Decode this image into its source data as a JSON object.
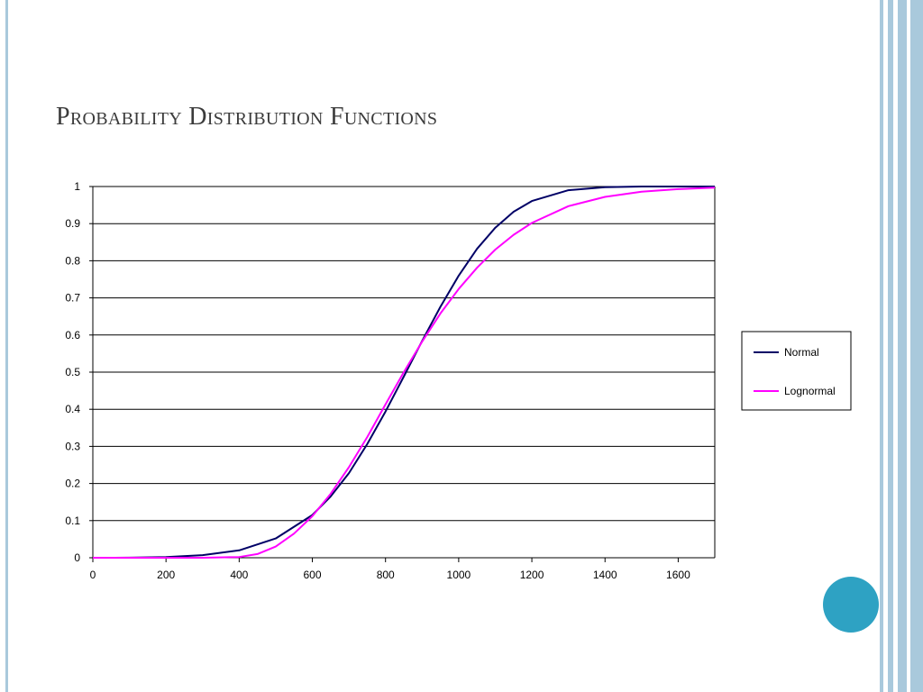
{
  "slide": {
    "title": "Probability Distribution Functions",
    "accent_stripe_color": "#a9c9dc",
    "circle_color": "#2ea2c3"
  },
  "chart_data": {
    "type": "line",
    "title": "",
    "xlabel": "",
    "ylabel": "",
    "xlim": [
      0,
      1700
    ],
    "ylim": [
      0,
      1
    ],
    "x_ticks": [
      0,
      200,
      400,
      600,
      800,
      1000,
      1200,
      1400,
      1600
    ],
    "y_ticks": [
      0,
      0.1,
      0.2,
      0.3,
      0.4,
      0.5,
      0.6,
      0.7,
      0.8,
      0.9,
      1
    ],
    "y_tick_labels": [
      "0",
      "0.1",
      "0.2",
      "0.3",
      "0.4",
      "0.5",
      "0.6",
      "0.7",
      "0.8",
      "0.9",
      "1"
    ],
    "grid": "horizontal",
    "legend_position": "right",
    "series": [
      {
        "name": "Normal",
        "color": "#000066",
        "x": [
          0,
          100,
          200,
          300,
          400,
          500,
          600,
          650,
          700,
          750,
          800,
          850,
          900,
          950,
          1000,
          1050,
          1100,
          1150,
          1200,
          1300,
          1400,
          1500,
          1600,
          1700
        ],
        "y": [
          0.0,
          0.0003,
          0.002,
          0.007,
          0.02,
          0.052,
          0.115,
          0.165,
          0.228,
          0.306,
          0.394,
          0.488,
          0.584,
          0.676,
          0.76,
          0.832,
          0.889,
          0.932,
          0.961,
          0.99,
          0.998,
          1.0,
          1.0,
          1.0
        ]
      },
      {
        "name": "Lognormal",
        "color": "#ff00ff",
        "x": [
          0,
          100,
          200,
          300,
          400,
          450,
          500,
          550,
          600,
          650,
          700,
          750,
          800,
          850,
          900,
          950,
          1000,
          1050,
          1100,
          1150,
          1200,
          1300,
          1400,
          1500,
          1600,
          1700
        ],
        "y": [
          0.0,
          0.0,
          0.0,
          0.0,
          0.002,
          0.01,
          0.03,
          0.065,
          0.112,
          0.172,
          0.244,
          0.325,
          0.413,
          0.5,
          0.582,
          0.658,
          0.724,
          0.781,
          0.83,
          0.87,
          0.902,
          0.947,
          0.972,
          0.986,
          0.993,
          0.997
        ]
      }
    ]
  }
}
